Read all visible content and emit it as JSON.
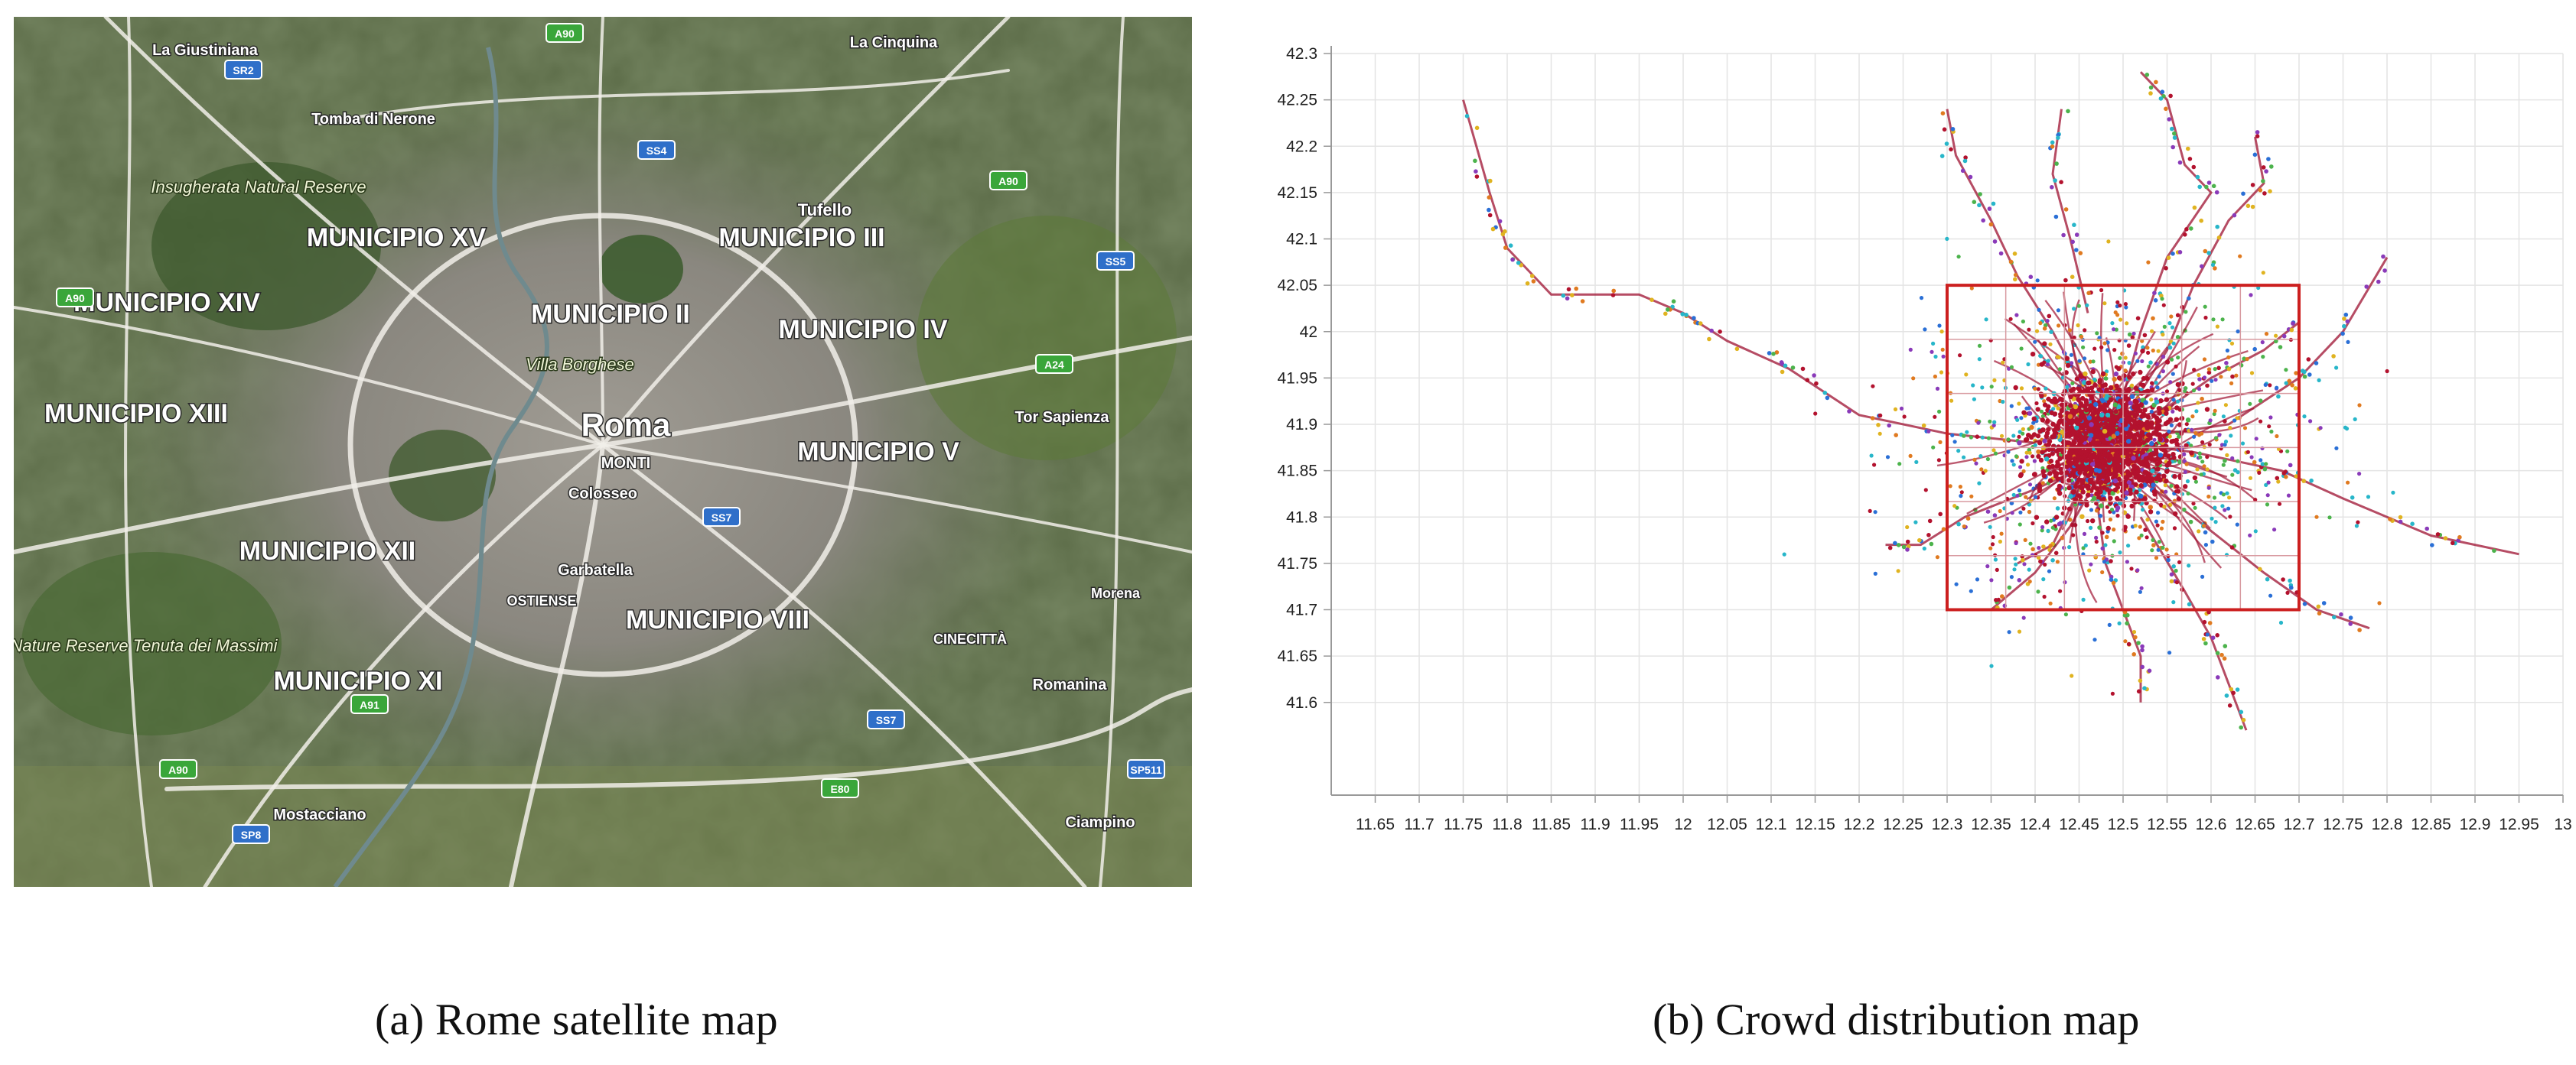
{
  "map": {
    "colors": {
      "terrain": "#5b6a4a",
      "urban": "#8d8a84",
      "roads": "#f4f2ee",
      "highway_shield": "#3aa63a",
      "state_shield": "#2f6fc9"
    },
    "labels": [
      {
        "id": "municipio-xv",
        "text": "MUNICIPIO XV"
      },
      {
        "id": "municipio-iii",
        "text": "MUNICIPIO III"
      },
      {
        "id": "municipio-ii",
        "text": "MUNICIPIO II"
      },
      {
        "id": "municipio-iv",
        "text": "MUNICIPIO IV"
      },
      {
        "id": "municipio-xiv",
        "text": "MUNICIPIO XIV"
      },
      {
        "id": "municipio-xiii",
        "text": "MUNICIPIO XIII"
      },
      {
        "id": "municipio-v",
        "text": "MUNICIPIO V"
      },
      {
        "id": "municipio-xii",
        "text": "MUNICIPIO XII"
      },
      {
        "id": "municipio-viii",
        "text": "MUNICIPIO VIII"
      },
      {
        "id": "municipio-xi",
        "text": "MUNICIPIO XI"
      },
      {
        "id": "roma",
        "text": "Roma"
      },
      {
        "id": "villa-borghese",
        "text": "Villa Borghese"
      },
      {
        "id": "tufello",
        "text": "Tufello"
      },
      {
        "id": "la-giustiniana",
        "text": "La Giustiniana"
      },
      {
        "id": "tomba-di-nerone",
        "text": "Tomba di Nerone"
      },
      {
        "id": "la-cinquina",
        "text": "La Cinquina"
      },
      {
        "id": "colosseo",
        "text": "Colosseo"
      },
      {
        "id": "monti",
        "text": "MONTI"
      },
      {
        "id": "garbatella",
        "text": "Garbatella"
      },
      {
        "id": "ostiense",
        "text": "OSTIENSE"
      },
      {
        "id": "tor-sapienza",
        "text": "Tor Sapienza"
      },
      {
        "id": "cinecitta",
        "text": "CINECITTÀ"
      },
      {
        "id": "romanina",
        "text": "Romanina"
      },
      {
        "id": "morena",
        "text": "Morena"
      },
      {
        "id": "ciampino",
        "text": "Ciampino"
      },
      {
        "id": "mostacciano",
        "text": "Mostacciano"
      },
      {
        "id": "nature-reserve",
        "text": "Nature Reserve Tenuta dei Massimi"
      },
      {
        "id": "insugherata",
        "text": "Insugherata Natural Reserve"
      }
    ],
    "shields": [
      {
        "id": "a90-n",
        "text": "A90"
      },
      {
        "id": "sr2",
        "text": "SR2"
      },
      {
        "id": "ss4",
        "text": "SS4"
      },
      {
        "id": "a90-w",
        "text": "A90"
      },
      {
        "id": "a90-e",
        "text": "A90"
      },
      {
        "id": "ss5",
        "text": "SS5"
      },
      {
        "id": "a24",
        "text": "A24"
      },
      {
        "id": "ss7",
        "text": "SS7"
      },
      {
        "id": "a91",
        "text": "A91"
      },
      {
        "id": "e80",
        "text": "E80"
      },
      {
        "id": "a90-sw",
        "text": "A90"
      },
      {
        "id": "sp8",
        "text": "SP8"
      },
      {
        "id": "ss7-s",
        "text": "SS7"
      },
      {
        "id": "sp511",
        "text": "SP511"
      }
    ]
  },
  "chart_data": {
    "type": "scatter",
    "xlim": [
      11.6,
      13
    ],
    "ylim": [
      41.5,
      42.3
    ],
    "x_ticks": [
      "11.65",
      "11.7",
      "11.75",
      "11.8",
      "11.85",
      "11.9",
      "11.95",
      "12",
      "12.05",
      "12.1",
      "12.15",
      "12.2",
      "12.25",
      "12.3",
      "12.35",
      "12.4",
      "12.45",
      "12.5",
      "12.55",
      "12.6",
      "12.65",
      "12.7",
      "12.75",
      "12.8",
      "12.85",
      "12.9",
      "12.95",
      "13"
    ],
    "y_ticks": [
      "41.6",
      "41.65",
      "41.7",
      "41.75",
      "41.8",
      "41.85",
      "41.9",
      "41.95",
      "42",
      "42.05",
      "42.1",
      "42.15",
      "42.2",
      "42.25",
      "42.3"
    ],
    "grid": true,
    "series_colors": [
      "#b3122e",
      "#2a6fd6",
      "#27b6c9",
      "#e0b320",
      "#4cb34c",
      "#8a3ab9",
      "#e07a20"
    ],
    "region": {
      "x": [
        12.3,
        12.7
      ],
      "y": [
        41.7,
        42.05
      ],
      "divisions": 6,
      "color": "#cc1f1f"
    },
    "dense_center": [
      12.48,
      41.88
    ],
    "trajectories": [
      [
        [
          11.75,
          42.25
        ],
        [
          11.78,
          42.15
        ],
        [
          11.8,
          42.09
        ],
        [
          11.85,
          42.04
        ],
        [
          11.95,
          42.04
        ],
        [
          12.0,
          42.02
        ],
        [
          12.05,
          41.99
        ],
        [
          12.12,
          41.96
        ],
        [
          12.2,
          41.91
        ],
        [
          12.3,
          41.89
        ],
        [
          12.4,
          41.88
        ]
      ],
      [
        [
          12.3,
          42.24
        ],
        [
          12.31,
          42.19
        ],
        [
          12.35,
          42.12
        ],
        [
          12.38,
          42.06
        ],
        [
          12.42,
          42.0
        ],
        [
          12.46,
          41.93
        ]
      ],
      [
        [
          12.23,
          41.77
        ],
        [
          12.27,
          41.77
        ],
        [
          12.32,
          41.8
        ],
        [
          12.4,
          41.83
        ],
        [
          12.47,
          41.86
        ]
      ],
      [
        [
          12.52,
          42.28
        ],
        [
          12.55,
          42.25
        ],
        [
          12.57,
          42.18
        ],
        [
          12.6,
          42.15
        ],
        [
          12.55,
          42.08
        ],
        [
          12.52,
          42.0
        ],
        [
          12.5,
          41.93
        ]
      ],
      [
        [
          12.65,
          42.21
        ],
        [
          12.66,
          42.16
        ],
        [
          12.62,
          42.12
        ],
        [
          12.58,
          42.05
        ],
        [
          12.55,
          41.98
        ],
        [
          12.51,
          41.92
        ]
      ],
      [
        [
          12.43,
          42.24
        ],
        [
          12.42,
          42.17
        ],
        [
          12.44,
          42.1
        ],
        [
          12.46,
          42.02
        ]
      ],
      [
        [
          12.95,
          41.76
        ],
        [
          12.85,
          41.78
        ],
        [
          12.75,
          41.82
        ],
        [
          12.68,
          41.85
        ],
        [
          12.58,
          41.87
        ],
        [
          12.5,
          41.88
        ]
      ],
      [
        [
          12.8,
          42.08
        ],
        [
          12.75,
          42.0
        ],
        [
          12.7,
          41.95
        ],
        [
          12.62,
          41.9
        ],
        [
          12.55,
          41.89
        ]
      ],
      [
        [
          12.52,
          41.6
        ],
        [
          12.52,
          41.65
        ],
        [
          12.5,
          41.7
        ],
        [
          12.48,
          41.75
        ],
        [
          12.47,
          41.82
        ]
      ],
      [
        [
          12.64,
          41.57
        ],
        [
          12.62,
          41.62
        ],
        [
          12.6,
          41.67
        ],
        [
          12.57,
          41.72
        ],
        [
          12.52,
          41.8
        ]
      ],
      [
        [
          12.78,
          41.68
        ],
        [
          12.72,
          41.7
        ],
        [
          12.66,
          41.74
        ],
        [
          12.58,
          41.8
        ],
        [
          12.52,
          41.84
        ]
      ],
      [
        [
          12.38,
          41.75
        ],
        [
          12.42,
          41.77
        ],
        [
          12.44,
          41.81
        ],
        [
          12.46,
          41.85
        ]
      ],
      [
        [
          12.7,
          42.01
        ],
        [
          12.66,
          41.98
        ],
        [
          12.6,
          41.95
        ],
        [
          12.54,
          41.91
        ]
      ],
      [
        [
          12.35,
          41.7
        ],
        [
          12.4,
          41.74
        ],
        [
          12.44,
          41.79
        ],
        [
          12.47,
          41.84
        ]
      ]
    ]
  },
  "captions": {
    "a": "(a) Rome satellite map",
    "b": "(b) Crowd distribution map"
  }
}
